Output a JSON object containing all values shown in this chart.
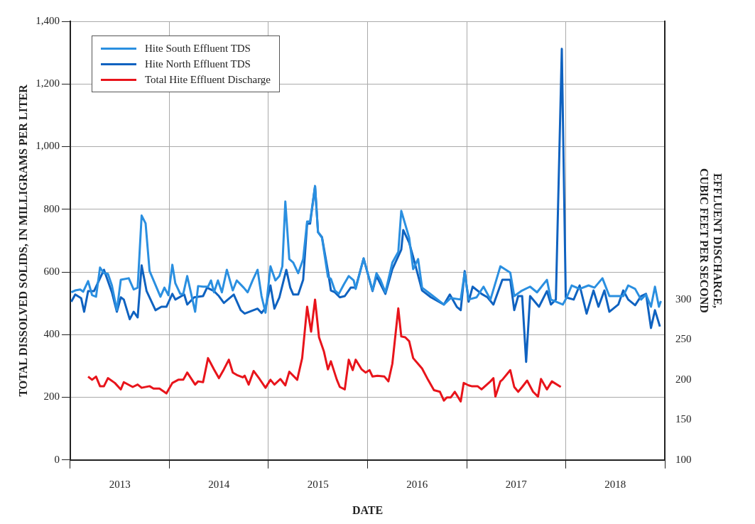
{
  "chart_data": {
    "type": "line",
    "xlabel": "DATE",
    "ylabel": "TOTAL DISSOLVED SOLIDS, IN MILLIGRAMS PER LITER",
    "y2label": "EFFLUENT DISCHARGE,\nCUBIC FEET PER SECOND",
    "xlim": [
      2013,
      2019
    ],
    "xticks": [
      {
        "value": 2013,
        "label": null
      },
      {
        "value": 2013.5,
        "label": "2013"
      },
      {
        "value": 2014,
        "label": null
      },
      {
        "value": 2014.5,
        "label": "2014"
      },
      {
        "value": 2015,
        "label": null
      },
      {
        "value": 2015.5,
        "label": "2015"
      },
      {
        "value": 2016,
        "label": null
      },
      {
        "value": 2016.5,
        "label": "2016"
      },
      {
        "value": 2017,
        "label": null
      },
      {
        "value": 2017.5,
        "label": "2017"
      },
      {
        "value": 2018,
        "label": null
      },
      {
        "value": 2018.5,
        "label": "2018"
      },
      {
        "value": 2019,
        "label": null
      }
    ],
    "ylim": [
      0,
      1400
    ],
    "yticks": [
      0,
      200,
      400,
      600,
      800,
      {
        "value": 1000,
        "label": "1,000"
      },
      {
        "value": 1200,
        "label": "1,200"
      },
      {
        "value": 1400,
        "label": "1,400"
      }
    ],
    "y2lim": [
      100,
      647
    ],
    "y2ticks": [
      100,
      150,
      200,
      250,
      300
    ],
    "grid": true,
    "legend": "top left",
    "line_style": "solid",
    "series": [
      {
        "name": "Hite South Effluent TDS",
        "color": "#2a8fe0",
        "x": [
          2013.01,
          2013.05,
          2013.1,
          2013.13,
          2013.18,
          2013.22,
          2013.26,
          2013.3,
          2013.34,
          2013.38,
          2013.42,
          2013.47,
          2013.51,
          2013.59,
          2013.64,
          2013.68,
          2013.72,
          2013.76,
          2013.8,
          2013.91,
          2013.95,
          2013.99,
          2014.03,
          2014.06,
          2014.11,
          2014.14,
          2014.18,
          2014.22,
          2014.26,
          2014.29,
          2014.34,
          2014.39,
          2014.42,
          2014.45,
          2014.49,
          2014.53,
          2014.58,
          2014.64,
          2014.68,
          2014.75,
          2014.79,
          2014.84,
          2014.89,
          2014.93,
          2014.97,
          2015.02,
          2015.07,
          2015.11,
          2015.14,
          2015.17,
          2015.21,
          2015.25,
          2015.3,
          2015.35,
          2015.39,
          2015.42,
          2015.47,
          2015.5,
          2015.54,
          2015.6,
          2015.63,
          2015.67,
          2015.71,
          2015.76,
          2015.81,
          2015.86,
          2015.88,
          2015.96,
          2016.05,
          2016.09,
          2016.13,
          2016.18,
          2016.25,
          2016.31,
          2016.34,
          2016.42,
          2016.46,
          2016.51,
          2016.55,
          2016.64,
          2016.77,
          2016.84,
          2016.94,
          2016.98,
          2017.02,
          2017.1,
          2017.17,
          2017.24,
          2017.34,
          2017.44,
          2017.48,
          2017.55,
          2017.64,
          2017.71,
          2017.81,
          2017.85,
          2017.97,
          2018.01,
          2018.06,
          2018.14,
          2018.23,
          2018.29,
          2018.37,
          2018.44,
          2018.51,
          2018.58,
          2018.63,
          2018.7,
          2018.76,
          2018.81,
          2018.86,
          2018.9,
          2018.94,
          2018.96
        ],
        "values": [
          535,
          541,
          544,
          537,
          571,
          526,
          521,
          614,
          596,
          594,
          557,
          478,
          575,
          580,
          544,
          550,
          780,
          755,
          603,
          521,
          550,
          526,
          623,
          564,
          530,
          530,
          587,
          530,
          473,
          555,
          553,
          553,
          573,
          535,
          573,
          535,
          607,
          541,
          573,
          550,
          535,
          573,
          607,
          523,
          470,
          618,
          573,
          587,
          618,
          825,
          641,
          630,
          596,
          641,
          761,
          761,
          874,
          727,
          709,
          584,
          578,
          541,
          530,
          560,
          587,
          573,
          546,
          643,
          541,
          596,
          575,
          535,
          630,
          664,
          795,
          709,
          609,
          641,
          550,
          528,
          496,
          517,
          512,
          598,
          512,
          519,
          553,
          512,
          618,
          598,
          523,
          539,
          553,
          535,
          575,
          512,
          496,
          519,
          557,
          546,
          557,
          550,
          580,
          523,
          523,
          523,
          557,
          546,
          512,
          528,
          489,
          553,
          489,
          507
        ]
      },
      {
        "name": "Hite North Effluent TDS",
        "color": "#0f62c0",
        "x": [
          2013.01,
          2013.05,
          2013.11,
          2013.14,
          2013.18,
          2013.24,
          2013.34,
          2013.42,
          2013.47,
          2013.51,
          2013.54,
          2013.6,
          2013.64,
          2013.68,
          2013.72,
          2013.77,
          2013.86,
          2013.92,
          2013.97,
          2014.03,
          2014.06,
          2014.15,
          2014.18,
          2014.25,
          2014.34,
          2014.38,
          2014.45,
          2014.5,
          2014.55,
          2014.65,
          2014.72,
          2014.76,
          2014.89,
          2014.93,
          2014.97,
          2015.02,
          2015.06,
          2015.11,
          2015.18,
          2015.22,
          2015.25,
          2015.3,
          2015.35,
          2015.39,
          2015.42,
          2015.47,
          2015.5,
          2015.54,
          2015.6,
          2015.63,
          2015.67,
          2015.72,
          2015.77,
          2015.83,
          2015.88,
          2015.96,
          2016.05,
          2016.09,
          2016.18,
          2016.25,
          2016.34,
          2016.36,
          2016.42,
          2016.46,
          2016.55,
          2016.64,
          2016.77,
          2016.83,
          2016.9,
          2016.94,
          2016.98,
          2017.02,
          2017.06,
          2017.15,
          2017.21,
          2017.27,
          2017.36,
          2017.44,
          2017.48,
          2017.52,
          2017.56,
          2017.6,
          2017.64,
          2017.73,
          2017.81,
          2017.85,
          2017.9,
          2017.96,
          2018.0,
          2018.08,
          2018.14,
          2018.21,
          2018.28,
          2018.33,
          2018.39,
          2018.44,
          2018.53,
          2018.58,
          2018.63,
          2018.7,
          2018.76,
          2018.81,
          2018.86,
          2018.9,
          2018.95
        ],
        "values": [
          505,
          528,
          516,
          473,
          539,
          539,
          607,
          535,
          473,
          519,
          512,
          449,
          473,
          455,
          621,
          539,
          478,
          489,
          489,
          530,
          512,
          528,
          496,
          519,
          523,
          550,
          539,
          523,
          501,
          528,
          478,
          467,
          483,
          469,
          485,
          557,
          483,
          519,
          607,
          550,
          528,
          528,
          575,
          754,
          754,
          874,
          727,
          711,
          603,
          541,
          535,
          519,
          523,
          550,
          550,
          643,
          539,
          587,
          530,
          609,
          671,
          734,
          693,
          648,
          541,
          519,
          496,
          528,
          489,
          478,
          603,
          505,
          553,
          530,
          519,
          496,
          575,
          575,
          478,
          523,
          523,
          313,
          523,
          489,
          539,
          496,
          512,
          1312,
          519,
          512,
          557,
          467,
          541,
          489,
          541,
          473,
          496,
          541,
          512,
          494,
          523,
          530,
          421,
          478,
          426
        ]
      },
      {
        "name": "Total Hite Effluent Discharge",
        "color": "#e8141b",
        "axis": "y2",
        "x": [
          2013.18,
          2013.22,
          2013.26,
          2013.3,
          2013.34,
          2013.38,
          2013.45,
          2013.51,
          2013.54,
          2013.63,
          2013.68,
          2013.72,
          2013.8,
          2013.84,
          2013.9,
          2013.97,
          2014.03,
          2014.09,
          2014.14,
          2014.18,
          2014.26,
          2014.29,
          2014.34,
          2014.39,
          2014.45,
          2014.5,
          2014.55,
          2014.6,
          2014.64,
          2014.68,
          2014.74,
          2014.76,
          2014.8,
          2014.85,
          2014.91,
          2014.97,
          2015.02,
          2015.06,
          2015.12,
          2015.17,
          2015.21,
          2015.29,
          2015.34,
          2015.39,
          2015.43,
          2015.47,
          2015.51,
          2015.56,
          2015.6,
          2015.63,
          2015.69,
          2015.72,
          2015.77,
          2015.81,
          2015.85,
          2015.88,
          2015.94,
          2015.98,
          2016.02,
          2016.05,
          2016.1,
          2016.17,
          2016.21,
          2016.25,
          2016.31,
          2016.34,
          2016.38,
          2016.42,
          2016.46,
          2016.55,
          2016.61,
          2016.67,
          2016.73,
          2016.77,
          2016.8,
          2016.84,
          2016.88,
          2016.94,
          2016.97,
          2017.02,
          2017.05,
          2017.11,
          2017.15,
          2017.24,
          2017.27,
          2017.29,
          2017.34,
          2017.36,
          2017.44,
          2017.48,
          2017.52,
          2017.56,
          2017.61,
          2017.67,
          2017.72,
          2017.75,
          2017.81,
          2017.86,
          2017.95
        ],
        "values": [
          204,
          200,
          204,
          192,
          192,
          202,
          196,
          188,
          197,
          191,
          194,
          190,
          192,
          189,
          189,
          183,
          196,
          200,
          200,
          209,
          194,
          198,
          197,
          227,
          213,
          202,
          213,
          225,
          209,
          206,
          203,
          205,
          194,
          211,
          201,
          190,
          200,
          194,
          201,
          193,
          210,
          200,
          227,
          291,
          260,
          300,
          253,
          235,
          213,
          223,
          200,
          191,
          188,
          225,
          212,
          225,
          213,
          209,
          212,
          204,
          205,
          204,
          198,
          220,
          289,
          254,
          253,
          248,
          227,
          214,
          200,
          187,
          185,
          174,
          178,
          178,
          185,
          173,
          196,
          193,
          192,
          192,
          188,
          198,
          202,
          179,
          198,
          200,
          212,
          191,
          185,
          191,
          199,
          185,
          179,
          201,
          188,
          198,
          191
        ]
      }
    ]
  }
}
